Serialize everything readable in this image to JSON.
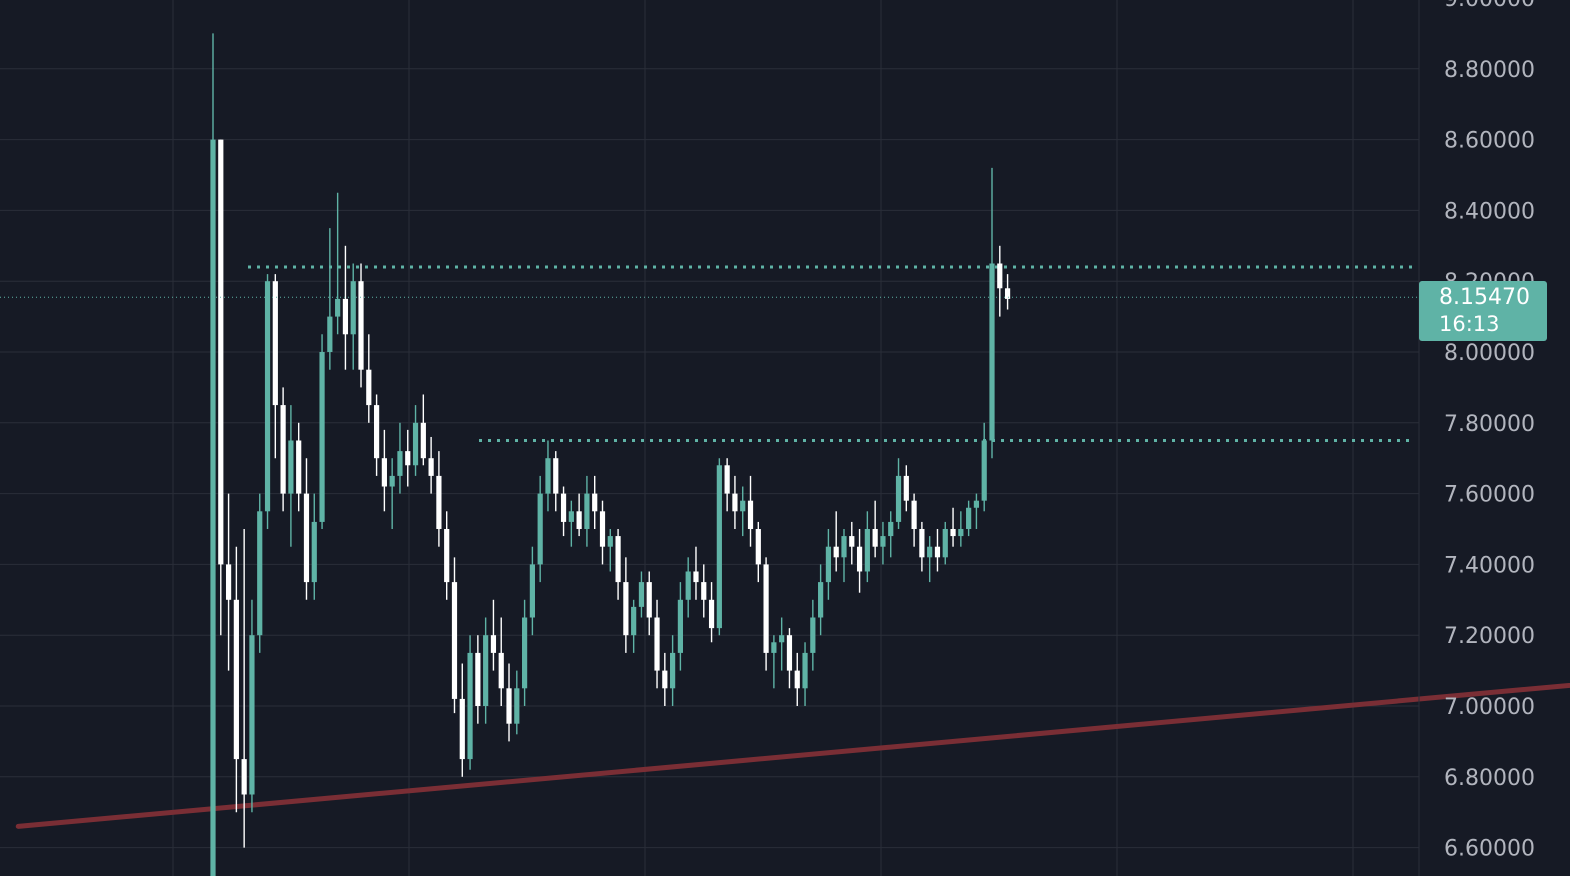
{
  "chart_data": {
    "type": "candlestick",
    "title": "",
    "xlabel": "",
    "ylabel": "",
    "ylim": [
      6.54,
      9.0
    ],
    "grid": true,
    "y_ticks": [
      "9.00000",
      "8.80000",
      "8.60000",
      "8.40000",
      "8.20000",
      "8.00000",
      "7.80000",
      "7.60000",
      "7.40000",
      "7.20000",
      "7.00000",
      "6.80000",
      "6.60000"
    ],
    "last_price": {
      "value": "8.15470",
      "countdown": "16:13"
    },
    "annotations": {
      "resistance_levels": [
        8.24,
        7.75
      ],
      "support_trendline": [
        {
          "bar": -25,
          "price": 6.66
        },
        {
          "bar": 235,
          "price": 7.18
        }
      ]
    },
    "colors": {
      "background": "#161a25",
      "up": "#5fb3a6",
      "down": "#ffffff",
      "trendline": "#7a2e35",
      "grid": "#2a2e39",
      "axis_text": "#b2b5be",
      "level_line": "#5fb3a6"
    },
    "series": [
      {
        "ohlc": [
          [
            6.5,
            8.9,
            6.5,
            8.6
          ],
          [
            8.6,
            8.6,
            7.2,
            7.4
          ],
          [
            7.4,
            7.6,
            7.1,
            7.3
          ],
          [
            7.3,
            7.45,
            6.7,
            6.85
          ],
          [
            6.85,
            7.5,
            6.6,
            6.75
          ],
          [
            6.75,
            7.3,
            6.7,
            7.2
          ],
          [
            7.2,
            7.6,
            7.15,
            7.55
          ],
          [
            7.55,
            8.22,
            7.5,
            8.2
          ],
          [
            8.2,
            8.22,
            7.7,
            7.85
          ],
          [
            7.85,
            7.9,
            7.55,
            7.6
          ],
          [
            7.6,
            7.85,
            7.45,
            7.75
          ],
          [
            7.75,
            7.8,
            7.55,
            7.6
          ],
          [
            7.6,
            7.7,
            7.3,
            7.35
          ],
          [
            7.35,
            7.6,
            7.3,
            7.52
          ],
          [
            7.52,
            8.05,
            7.5,
            8.0
          ],
          [
            8.0,
            8.35,
            7.95,
            8.1
          ],
          [
            8.1,
            8.45,
            8.05,
            8.15
          ],
          [
            8.15,
            8.3,
            7.95,
            8.05
          ],
          [
            8.05,
            8.25,
            7.95,
            8.2
          ],
          [
            8.2,
            8.25,
            7.9,
            7.95
          ],
          [
            7.95,
            8.05,
            7.8,
            7.85
          ],
          [
            7.85,
            7.88,
            7.65,
            7.7
          ],
          [
            7.7,
            7.78,
            7.55,
            7.62
          ],
          [
            7.62,
            7.7,
            7.5,
            7.65
          ],
          [
            7.65,
            7.8,
            7.6,
            7.72
          ],
          [
            7.72,
            7.78,
            7.62,
            7.68
          ],
          [
            7.68,
            7.85,
            7.65,
            7.8
          ],
          [
            7.8,
            7.88,
            7.68,
            7.7
          ],
          [
            7.7,
            7.76,
            7.6,
            7.65
          ],
          [
            7.65,
            7.72,
            7.45,
            7.5
          ],
          [
            7.5,
            7.55,
            7.3,
            7.35
          ],
          [
            7.35,
            7.42,
            6.98,
            7.02
          ],
          [
            7.02,
            7.12,
            6.8,
            6.85
          ],
          [
            6.85,
            7.2,
            6.82,
            7.15
          ],
          [
            7.15,
            7.2,
            6.95,
            7.0
          ],
          [
            7.0,
            7.25,
            6.95,
            7.2
          ],
          [
            7.2,
            7.3,
            7.1,
            7.15
          ],
          [
            7.15,
            7.25,
            7.0,
            7.05
          ],
          [
            7.05,
            7.12,
            6.9,
            6.95
          ],
          [
            6.95,
            7.1,
            6.92,
            7.05
          ],
          [
            7.05,
            7.3,
            7.0,
            7.25
          ],
          [
            7.25,
            7.45,
            7.2,
            7.4
          ],
          [
            7.4,
            7.65,
            7.35,
            7.6
          ],
          [
            7.6,
            7.75,
            7.55,
            7.7
          ],
          [
            7.7,
            7.72,
            7.55,
            7.6
          ],
          [
            7.6,
            7.62,
            7.48,
            7.52
          ],
          [
            7.52,
            7.58,
            7.45,
            7.55
          ],
          [
            7.55,
            7.6,
            7.48,
            7.5
          ],
          [
            7.5,
            7.65,
            7.45,
            7.6
          ],
          [
            7.6,
            7.65,
            7.5,
            7.55
          ],
          [
            7.55,
            7.58,
            7.4,
            7.45
          ],
          [
            7.45,
            7.5,
            7.38,
            7.48
          ],
          [
            7.48,
            7.5,
            7.3,
            7.35
          ],
          [
            7.35,
            7.42,
            7.15,
            7.2
          ],
          [
            7.2,
            7.3,
            7.15,
            7.28
          ],
          [
            7.28,
            7.38,
            7.25,
            7.35
          ],
          [
            7.35,
            7.38,
            7.2,
            7.25
          ],
          [
            7.25,
            7.3,
            7.05,
            7.1
          ],
          [
            7.1,
            7.15,
            7.0,
            7.05
          ],
          [
            7.05,
            7.2,
            7.0,
            7.15
          ],
          [
            7.15,
            7.35,
            7.1,
            7.3
          ],
          [
            7.3,
            7.42,
            7.25,
            7.38
          ],
          [
            7.38,
            7.45,
            7.3,
            7.35
          ],
          [
            7.35,
            7.4,
            7.25,
            7.3
          ],
          [
            7.3,
            7.35,
            7.18,
            7.22
          ],
          [
            7.22,
            7.7,
            7.2,
            7.68
          ],
          [
            7.68,
            7.7,
            7.55,
            7.6
          ],
          [
            7.6,
            7.65,
            7.5,
            7.55
          ],
          [
            7.55,
            7.62,
            7.48,
            7.58
          ],
          [
            7.58,
            7.65,
            7.45,
            7.5
          ],
          [
            7.5,
            7.52,
            7.35,
            7.4
          ],
          [
            7.4,
            7.42,
            7.1,
            7.15
          ],
          [
            7.15,
            7.2,
            7.05,
            7.18
          ],
          [
            7.18,
            7.25,
            7.1,
            7.2
          ],
          [
            7.2,
            7.22,
            7.05,
            7.1
          ],
          [
            7.1,
            7.15,
            7.0,
            7.05
          ],
          [
            7.05,
            7.18,
            7.0,
            7.15
          ],
          [
            7.15,
            7.3,
            7.1,
            7.25
          ],
          [
            7.25,
            7.4,
            7.2,
            7.35
          ],
          [
            7.35,
            7.5,
            7.3,
            7.45
          ],
          [
            7.45,
            7.55,
            7.38,
            7.42
          ],
          [
            7.42,
            7.5,
            7.35,
            7.48
          ],
          [
            7.48,
            7.52,
            7.4,
            7.45
          ],
          [
            7.45,
            7.5,
            7.32,
            7.38
          ],
          [
            7.38,
            7.55,
            7.35,
            7.5
          ],
          [
            7.5,
            7.58,
            7.42,
            7.45
          ],
          [
            7.45,
            7.52,
            7.4,
            7.48
          ],
          [
            7.48,
            7.55,
            7.42,
            7.52
          ],
          [
            7.52,
            7.7,
            7.5,
            7.65
          ],
          [
            7.65,
            7.68,
            7.55,
            7.58
          ],
          [
            7.58,
            7.6,
            7.45,
            7.5
          ],
          [
            7.5,
            7.52,
            7.38,
            7.42
          ],
          [
            7.42,
            7.48,
            7.35,
            7.45
          ],
          [
            7.45,
            7.5,
            7.38,
            7.42
          ],
          [
            7.42,
            7.52,
            7.4,
            7.5
          ],
          [
            7.5,
            7.56,
            7.45,
            7.48
          ],
          [
            7.48,
            7.55,
            7.45,
            7.5
          ],
          [
            7.5,
            7.58,
            7.48,
            7.56
          ],
          [
            7.56,
            7.6,
            7.5,
            7.58
          ],
          [
            7.58,
            7.8,
            7.55,
            7.75
          ],
          [
            7.75,
            8.52,
            7.7,
            8.25
          ],
          [
            8.25,
            8.3,
            8.1,
            8.18
          ],
          [
            8.18,
            8.22,
            8.12,
            8.15
          ]
        ]
      }
    ]
  }
}
